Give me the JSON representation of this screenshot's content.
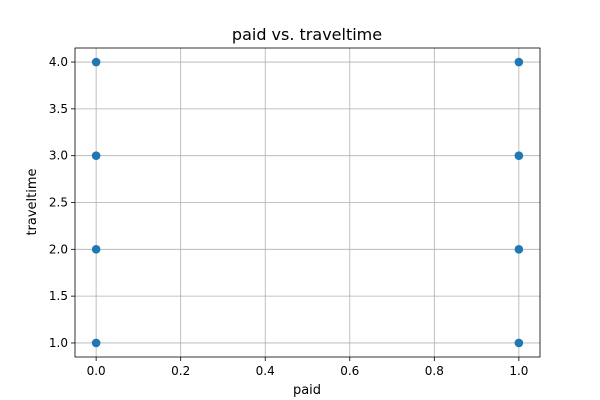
{
  "chart_data": {
    "type": "scatter",
    "title": "paid vs. traveltime",
    "xlabel": "paid",
    "ylabel": "traveltime",
    "xlim": [
      -0.05,
      1.05
    ],
    "ylim": [
      0.85,
      4.15
    ],
    "xticks": [
      0.0,
      0.2,
      0.4,
      0.6,
      0.8,
      1.0
    ],
    "xtick_labels": [
      "0.0",
      "0.2",
      "0.4",
      "0.6",
      "0.8",
      "1.0"
    ],
    "yticks": [
      1.0,
      1.5,
      2.0,
      2.5,
      3.0,
      3.5,
      4.0
    ],
    "ytick_labels": [
      "1.0",
      "1.5",
      "2.0",
      "2.5",
      "3.0",
      "3.5",
      "4.0"
    ],
    "grid": true,
    "legend": "none",
    "series": [
      {
        "color": "#1f77b4",
        "points": [
          {
            "x": 0,
            "y": 1
          },
          {
            "x": 0,
            "y": 2
          },
          {
            "x": 0,
            "y": 3
          },
          {
            "x": 0,
            "y": 4
          },
          {
            "x": 1,
            "y": 1
          },
          {
            "x": 1,
            "y": 2
          },
          {
            "x": 1,
            "y": 3
          },
          {
            "x": 1,
            "y": 4
          }
        ]
      }
    ],
    "colors": {
      "grid": "#b0b0b0",
      "axes": "#000000"
    }
  }
}
